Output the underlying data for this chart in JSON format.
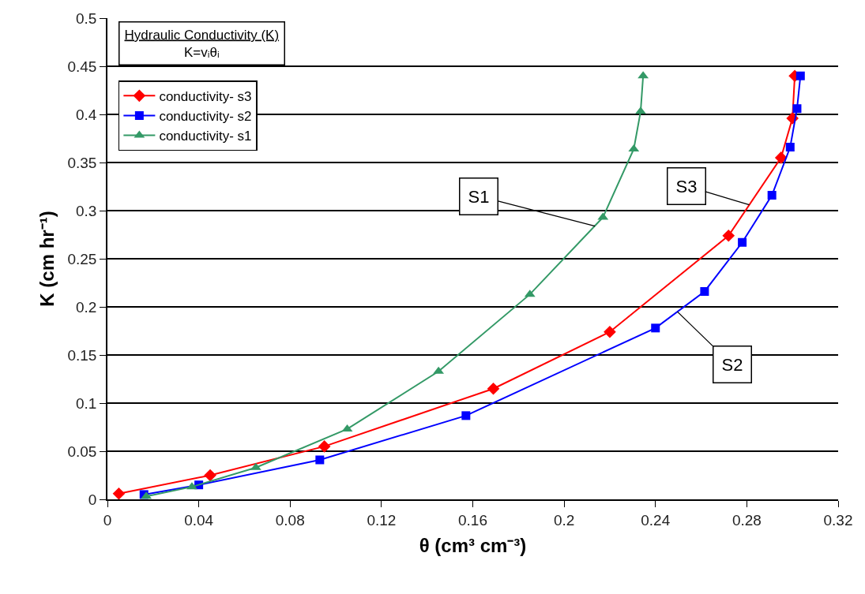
{
  "chart_data": {
    "type": "line",
    "title": "Hydraulic Conductivity (K)",
    "subtitle": "K=vᵢθᵢ",
    "xlabel": "θ (cm³ cm⁻³)",
    "ylabel": "K (cm hr⁻¹)",
    "xlim": [
      0,
      0.32
    ],
    "xticks": [
      0,
      0.04,
      0.08,
      0.12,
      0.16,
      0.2,
      0.24,
      0.28,
      0.32
    ],
    "ylim": [
      0,
      0.5
    ],
    "yticks": [
      0,
      0.05,
      0.1,
      0.15,
      0.2,
      0.25,
      0.3,
      0.35,
      0.4,
      0.45,
      0.5
    ],
    "grid": "y",
    "legend": "top left",
    "series": [
      {
        "name": "conductivity- s3",
        "color": "#ff0000",
        "marker": "diamond",
        "x": [
          0.005,
          0.045,
          0.095,
          0.169,
          0.22,
          0.272,
          0.295,
          0.3,
          0.301
        ],
        "values": [
          0.006,
          0.025,
          0.055,
          0.115,
          0.174,
          0.274,
          0.355,
          0.396,
          0.44
        ]
      },
      {
        "name": "conductivity- s2",
        "color": "#0000ff",
        "marker": "square",
        "x": [
          0.016,
          0.04,
          0.093,
          0.157,
          0.24,
          0.2615,
          0.278,
          0.291,
          0.299,
          0.302,
          0.3035
        ],
        "values": [
          0.005,
          0.015,
          0.041,
          0.087,
          0.178,
          0.216,
          0.267,
          0.316,
          0.366,
          0.406,
          0.44
        ]
      },
      {
        "name": "conductivity- s1",
        "color": "#339966",
        "marker": "triangle",
        "x": [
          0.017,
          0.037,
          0.065,
          0.105,
          0.145,
          0.185,
          0.217,
          0.2305,
          0.2335,
          0.2346
        ],
        "values": [
          0.003,
          0.013,
          0.033,
          0.073,
          0.133,
          0.213,
          0.293,
          0.364,
          0.403,
          0.44
        ]
      }
    ],
    "annotations": [
      {
        "text": "S1",
        "x": 0.2135,
        "y": 0.284
      },
      {
        "text": "S3",
        "x": 0.2811,
        "y": 0.306
      },
      {
        "text": "S2",
        "x": 0.2496,
        "y": 0.195
      }
    ]
  }
}
